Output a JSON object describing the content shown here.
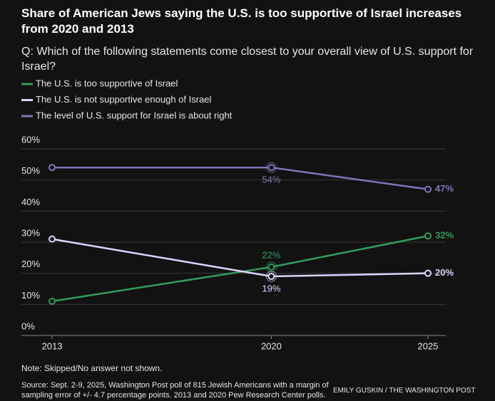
{
  "chart_data": {
    "type": "line",
    "title": "Share of American Jews saying the U.S. is too supportive of Israel increases from 2020 and 2013",
    "subtitle": "Q: Which of the following statements come closest to your overall view of U.S. support for Israel?",
    "x": [
      2013,
      2020,
      2025
    ],
    "xlim": [
      2013,
      2025
    ],
    "xticks": [
      2013,
      2020,
      2025
    ],
    "ylim": [
      0,
      60
    ],
    "yticks": [
      {
        "value": 0,
        "label": "0%"
      },
      {
        "value": 10,
        "label": "10%"
      },
      {
        "value": 20,
        "label": "20%"
      },
      {
        "value": 30,
        "label": "30%"
      },
      {
        "value": 40,
        "label": "40%"
      },
      {
        "value": 50,
        "label": "50%"
      },
      {
        "value": 60,
        "label": "60%"
      }
    ],
    "grid": true,
    "series": [
      {
        "name": "The U.S. is too supportive of Israel",
        "color": "#2f9e5c",
        "values": [
          11,
          22,
          32
        ],
        "value_labels": [
          null,
          "22%",
          "32%"
        ]
      },
      {
        "name": "The U.S. is not supportive enough of Israel",
        "color": "#dcd6ff",
        "values": [
          31,
          19,
          20
        ],
        "value_labels": [
          null,
          "19%",
          "20%"
        ]
      },
      {
        "name": "The level of U.S. support for Israel is about right",
        "color": "#7d76b8",
        "values": [
          54,
          54,
          47
        ],
        "value_labels": [
          null,
          "54%",
          "47%"
        ]
      }
    ],
    "note": "Note: Skipped/No answer not shown.",
    "source": "Source: Sept. 2-9, 2025, Washington Post poll of 815 Jewish Americans with a margin of sampling error of +/- 4.7 percentage points. 2013 and 2020 Pew Research Center polls.",
    "credit": "EMILY GUSKIN / THE WASHINGTON POST"
  }
}
